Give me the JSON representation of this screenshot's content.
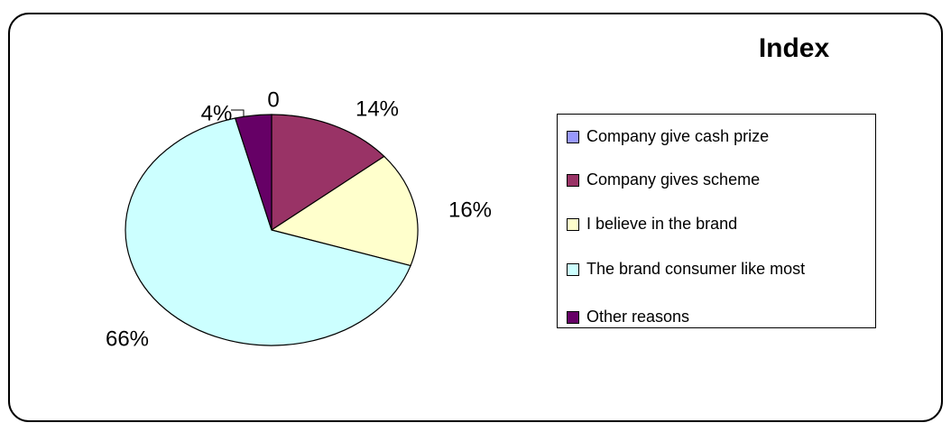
{
  "chart_data": {
    "type": "pie",
    "title": "Index",
    "categories": [
      "Company give cash prize",
      "Company gives scheme",
      "I believe in the brand",
      "The brand consumer like most",
      "Other reasons"
    ],
    "values": [
      0,
      14,
      16,
      66,
      4
    ],
    "value_labels": [
      "0",
      "14%",
      "16%",
      "66%",
      "4%"
    ],
    "colors": [
      "#9999ff",
      "#993366",
      "#ffffcc",
      "#ccffff",
      "#660066"
    ],
    "legend": "right"
  }
}
